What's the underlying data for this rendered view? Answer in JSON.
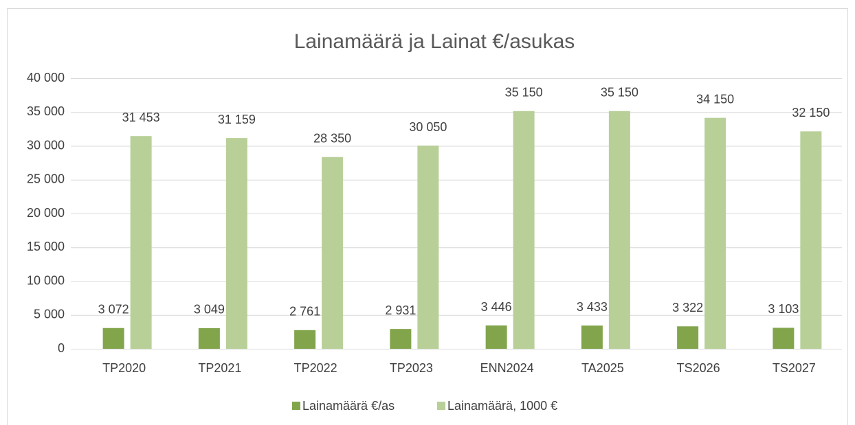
{
  "chart_data": {
    "type": "bar",
    "title": "Lainamäärä ja Lainat €/asukas",
    "categories": [
      "TP2020",
      "TP2021",
      "TP2022",
      "TP2023",
      "ENN2024",
      "TA2025",
      "TS2026",
      "TS2027"
    ],
    "series": [
      {
        "name": "Lainamäärä €/as",
        "color": "#82a54c",
        "values": [
          3072,
          3049,
          2761,
          2931,
          3446,
          3433,
          3322,
          3103
        ],
        "value_labels": [
          "3 072",
          "3 049",
          "2 761",
          "2 931",
          "3 446",
          "3 433",
          "3 322",
          "3 103"
        ]
      },
      {
        "name": "Lainamäärä, 1000 €",
        "color": "#b8d098",
        "values": [
          31453,
          31159,
          28350,
          30050,
          35150,
          35150,
          34150,
          32150
        ],
        "value_labels": [
          "31 453",
          "31 159",
          "28 350",
          "30 050",
          "35 150",
          "35 150",
          "34 150",
          "32 150"
        ]
      }
    ],
    "ylim": [
      0,
      40000
    ],
    "yticks": [
      0,
      {
        "value": 5000,
        "label": "5 000"
      },
      {
        "value": 10000,
        "label": "10 000"
      },
      {
        "value": 15000,
        "label": "15 000"
      },
      {
        "value": 20000,
        "label": "20 000"
      },
      {
        "value": 25000,
        "label": "25 000"
      },
      {
        "value": 30000,
        "label": "30 000"
      },
      {
        "value": 35000,
        "label": "35 000"
      },
      {
        "value": 40000,
        "label": "40 000"
      }
    ],
    "grid": true,
    "legend": "bottom"
  }
}
